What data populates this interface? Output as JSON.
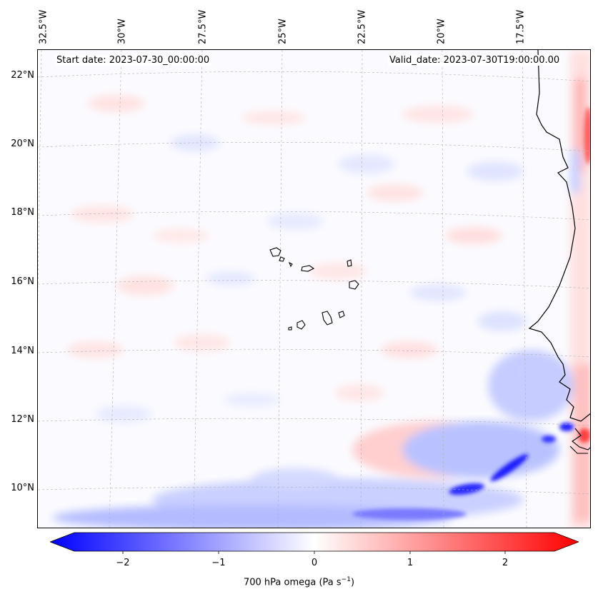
{
  "header": {
    "start_date": "Start date: 2023-07-30_00:00:00",
    "valid_date": "Valid_date: 2023-07-30T19:00:00.00"
  },
  "longitude_labels": [
    "32.5°W",
    "30°W",
    "27.5°W",
    "25°W",
    "22.5°W",
    "20°W",
    "17.5°W"
  ],
  "latitude_labels": [
    "22°N",
    "20°N",
    "18°N",
    "16°N",
    "14°N",
    "12°N",
    "10°N"
  ],
  "colorbar": {
    "ticks": [
      "−2",
      "−1",
      "0",
      "1",
      "2"
    ],
    "label_prefix": "700 hPa omega (Pa s",
    "label_sup": "−1",
    "label_suffix": ")",
    "min_color": "#0000ff",
    "mid_color": "#ffffff",
    "max_color": "#ff0000"
  },
  "colors": {
    "coastline": "#000000",
    "gridline": "#b0b0b0"
  }
}
